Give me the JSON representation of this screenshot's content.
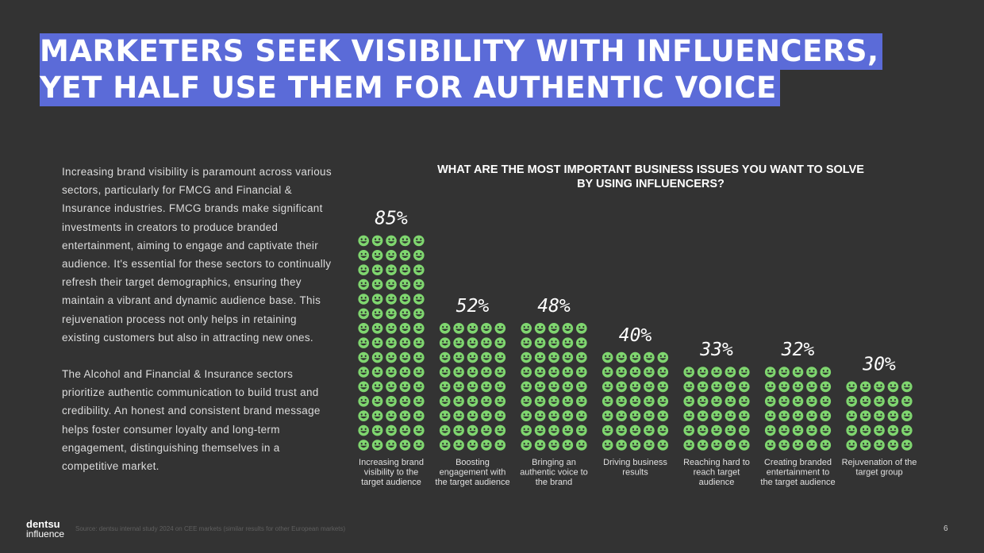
{
  "header": {
    "title_line1": "MARKETERS SEEK VISIBILITY WITH INFLUENCERS,",
    "title_line2": "YET HALF USE THEM FOR AUTHENTIC VOICE"
  },
  "body": {
    "paragraph1": "Increasing brand visibility is paramount across various sectors, particularly for FMCG and Financial & Insurance industries. FMCG brands make significant investments in creators to produce branded entertainment, aiming to engage and captivate their audience. It's essential for these sectors to continually refresh their target demographics, ensuring they maintain a vibrant and dynamic audience base. This rejuvenation process not only helps in retaining existing customers but also in attracting new ones.",
    "paragraph2": "The Alcohol and Financial & Insurance sectors prioritize authentic communication to build trust and credibility. An honest and consistent brand message helps foster consumer loyalty and long-term engagement, distinguishing themselves in a competitive market."
  },
  "chart_data": {
    "type": "bar",
    "title": "WHAT ARE THE MOST IMPORTANT BUSINESS ISSUES YOU WANT TO SOLVE BY USING INFLUENCERS?",
    "categories": [
      "Increasing brand visibility to the target audience",
      "Boosting engagement with the target audience",
      "Bringing an authentic voice to the brand",
      "Driving business results",
      "Reaching hard to reach target audience",
      "Creating branded entertainment to the target audience",
      "Rejuvenation of the target group"
    ],
    "category_lines": [
      [
        "Increasing brand",
        "visibility to the",
        "target audience"
      ],
      [
        "Boosting",
        "engagement with",
        "the target audience"
      ],
      [
        "Bringing an",
        "authentic voice to",
        "the brand"
      ],
      [
        "Driving business",
        "results"
      ],
      [
        "Reaching hard to",
        "reach target",
        "audience"
      ],
      [
        "Creating branded",
        "entertainment to",
        "the target audience"
      ],
      [
        "Rejuvenation of the",
        "target group"
      ]
    ],
    "values": [
      85,
      52,
      48,
      40,
      33,
      32,
      30
    ],
    "value_labels": [
      "85%",
      "52%",
      "48%",
      "40%",
      "33%",
      "32%",
      "30%"
    ],
    "unit": "%",
    "colors": {
      "icon": "#7fd66f",
      "icon_face": "#2f2f2f",
      "label": "#ffffff",
      "category": "#e0e0e0"
    }
  },
  "footer": {
    "logo_line1": "dentsu",
    "logo_line2": "influence",
    "source": "Source: dentsu internal study 2024 on CEE markets (similar results for other European markets)",
    "page_number": "6"
  }
}
